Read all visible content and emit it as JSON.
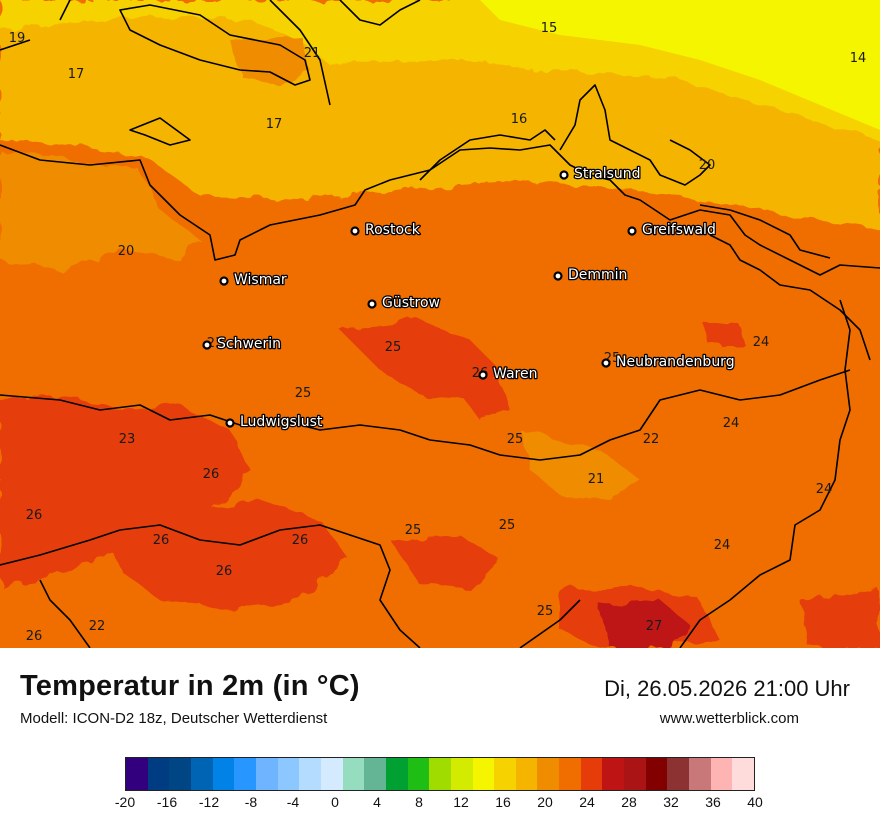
{
  "map": {
    "values": [
      {
        "t": "19"
      },
      {
        "t": "21"
      },
      {
        "t": "17"
      },
      {
        "t": "17"
      },
      {
        "t": "15"
      },
      {
        "t": "14"
      },
      {
        "t": "16"
      },
      {
        "t": "20"
      },
      {
        "t": "20"
      },
      {
        "t": "23"
      },
      {
        "t": "25"
      },
      {
        "t": "25"
      },
      {
        "t": "26"
      },
      {
        "t": "25"
      },
      {
        "t": "24"
      },
      {
        "t": "23"
      },
      {
        "t": "26"
      },
      {
        "t": "25"
      },
      {
        "t": "22"
      },
      {
        "t": "24"
      },
      {
        "t": "21"
      },
      {
        "t": "24"
      },
      {
        "t": "26"
      },
      {
        "t": "26"
      },
      {
        "t": "26"
      },
      {
        "t": "25"
      },
      {
        "t": "25"
      },
      {
        "t": "24"
      },
      {
        "t": "26"
      },
      {
        "t": "25"
      },
      {
        "t": "27"
      },
      {
        "t": "26"
      },
      {
        "t": "22"
      }
    ],
    "cities": [
      {
        "name": "Stralsund"
      },
      {
        "name": "Rostock"
      },
      {
        "name": "Greifswald"
      },
      {
        "name": "Wismar"
      },
      {
        "name": "Demmin"
      },
      {
        "name": "Güstrow"
      },
      {
        "name": "Schwerin"
      },
      {
        "name": "Waren"
      },
      {
        "name": "Neubrandenburg"
      },
      {
        "name": "Ludwigslust"
      }
    ]
  },
  "footer": {
    "title": "Temperatur in 2m (in °C)",
    "subtitle": "Modell: ICON-D2 18z, Deutscher Wetterdienst",
    "datetime": "Di, 26.05.2026 21:00 Uhr",
    "website": "www.wetterblick.com"
  },
  "legend": {
    "colors": [
      "#32007f",
      "#003c82",
      "#004684",
      "#0064b4",
      "#0082e6",
      "#2896ff",
      "#6eb4ff",
      "#8cc8ff",
      "#b4dcff",
      "#d4ebff",
      "#96dcbe",
      "#64b496",
      "#00a032",
      "#1ebe14",
      "#a0dc00",
      "#d2eb00",
      "#f5f500",
      "#f5d200",
      "#f5b400",
      "#f08c00",
      "#f06e00",
      "#e63c0a",
      "#be1414",
      "#aa1414",
      "#820000",
      "#8c3232",
      "#c87878",
      "#ffb4b4",
      "#ffdcdc"
    ],
    "ticks": [
      "-20",
      "-16",
      "-12",
      "-8",
      "-4",
      "0",
      "4",
      "8",
      "12",
      "16",
      "20",
      "24",
      "28",
      "32",
      "36",
      "40"
    ]
  }
}
